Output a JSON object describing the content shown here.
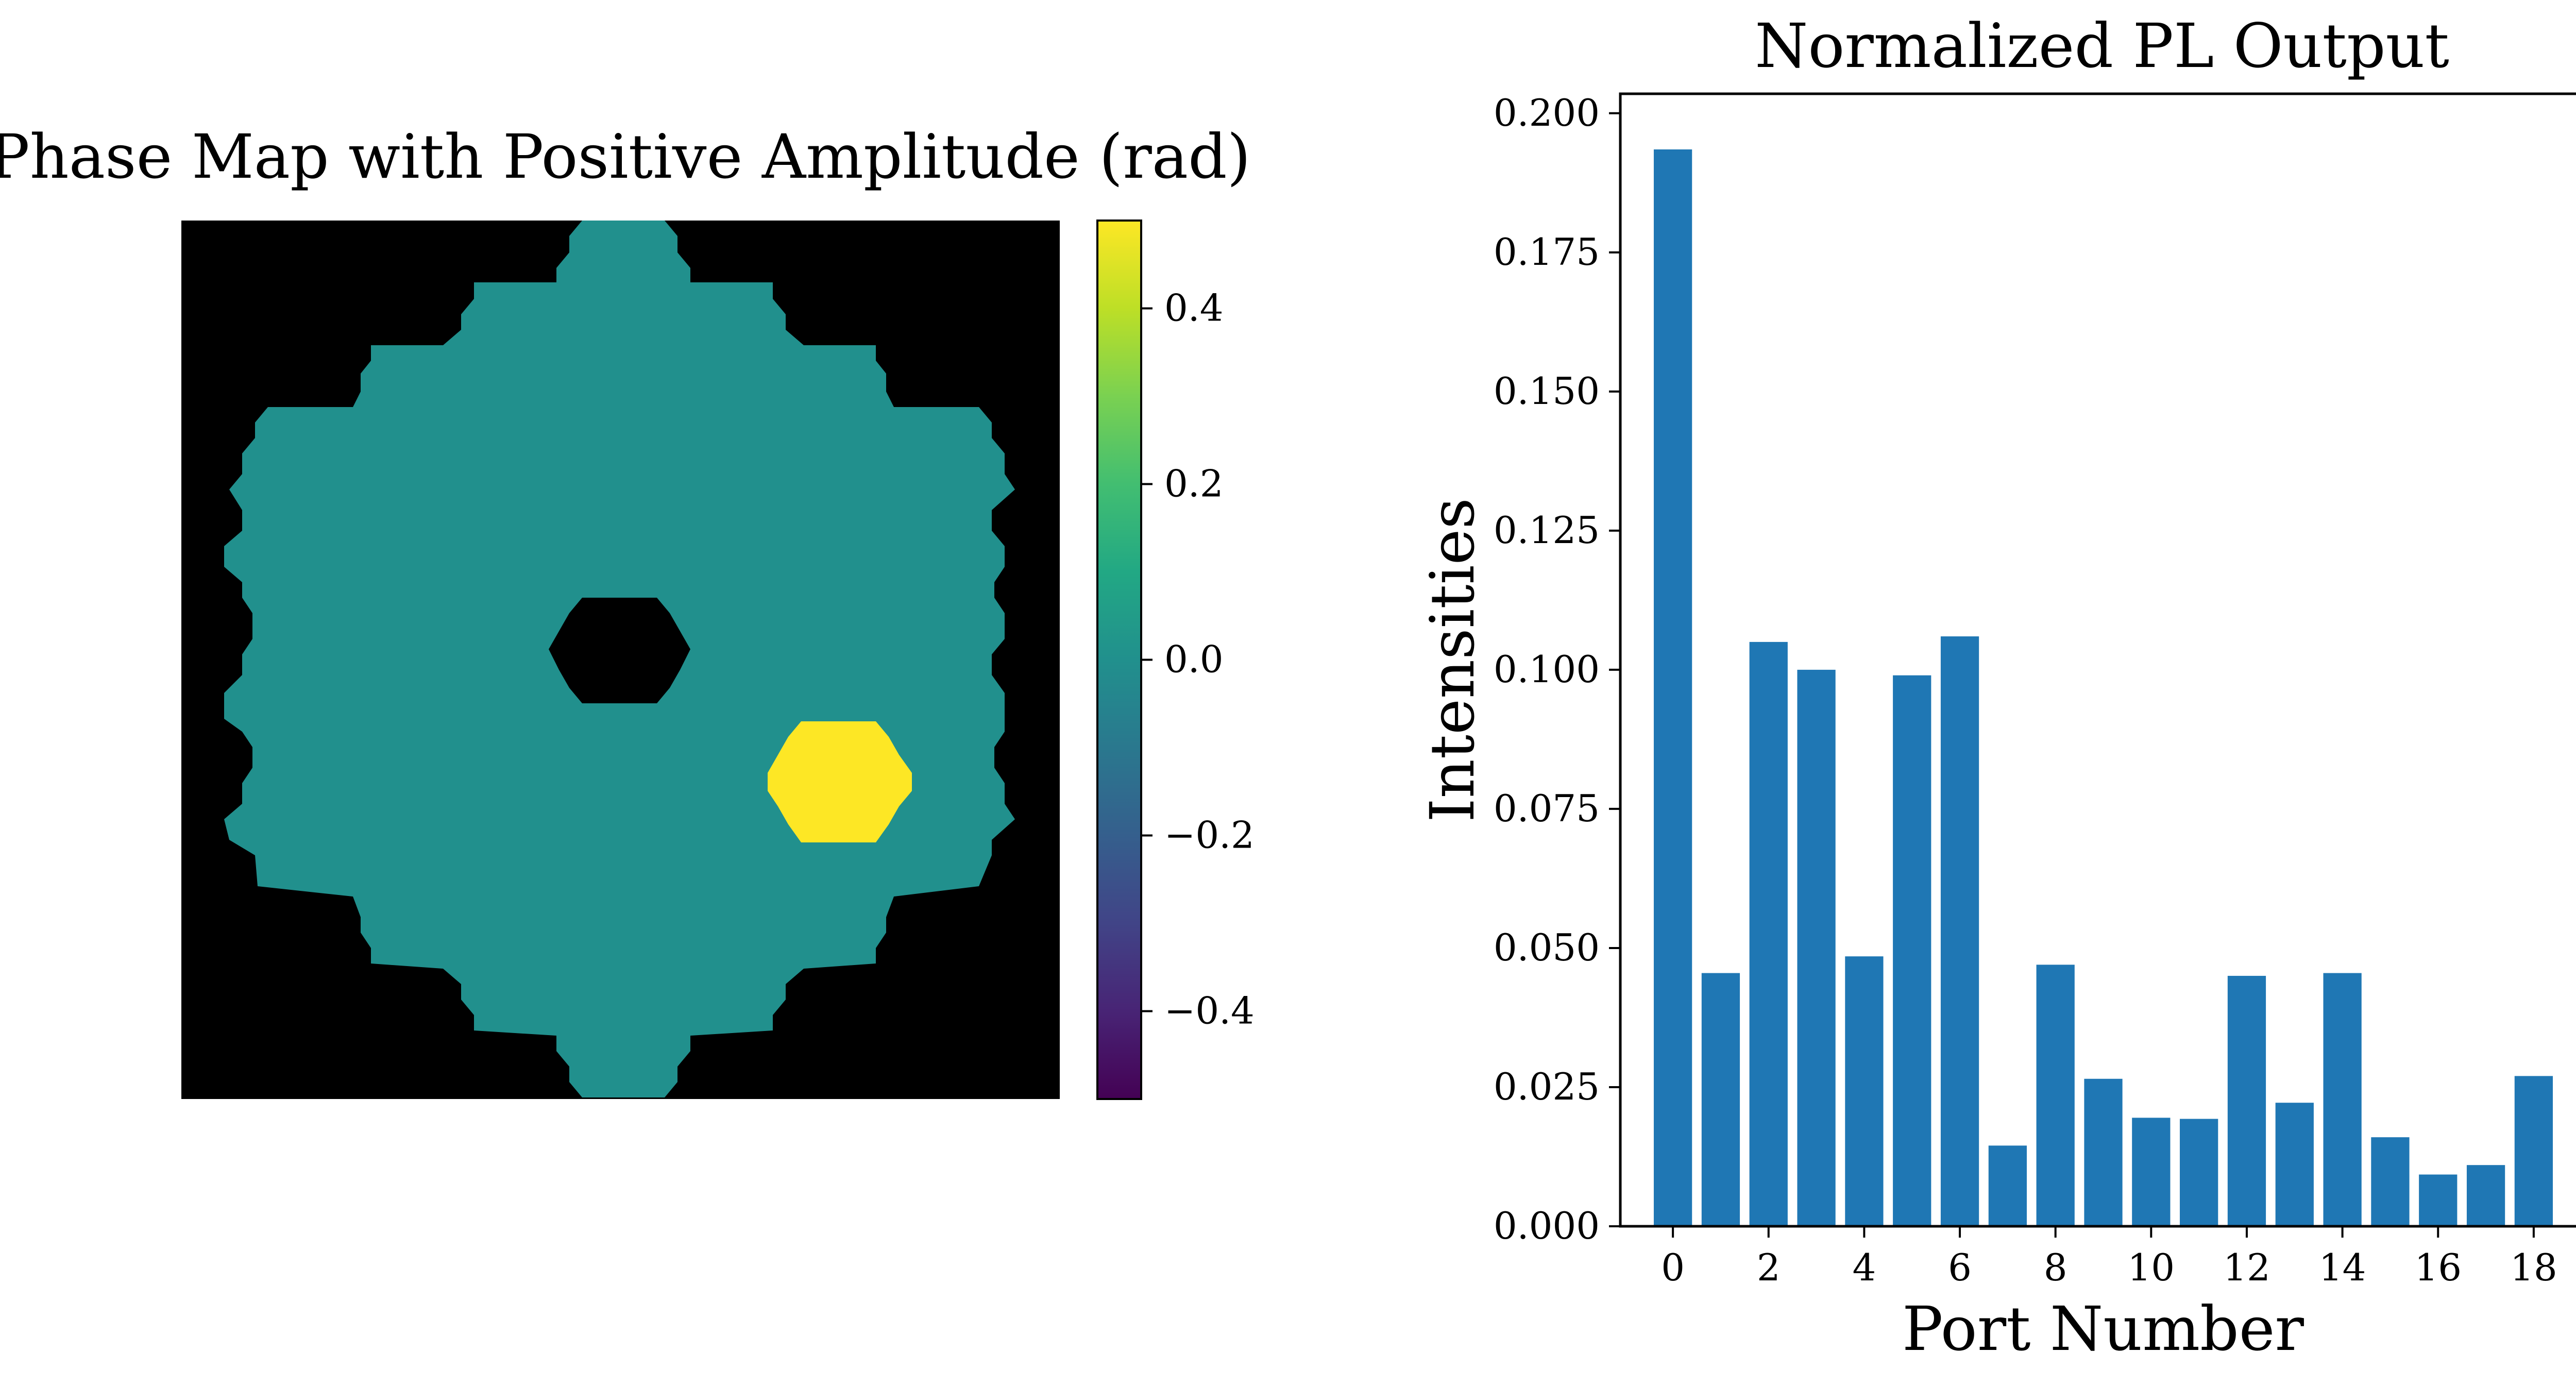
{
  "colors": {
    "background": "#ffffff",
    "mask": "#000000",
    "pupil": "#21908d",
    "segment": "#fde725",
    "bar": "#1f77b4",
    "axis": "#000000"
  },
  "chart_data": [
    {
      "type": "heatmap",
      "title": "Phase Map with Positive Amplitude (rad)",
      "description_values": {
        "pupil_phase": 0.0,
        "aberrated_segment_phase": 0.5,
        "outside_pupil": "masked"
      },
      "colorbar": {
        "colormap": "viridis",
        "range": [
          -0.5,
          0.5
        ],
        "ticks": [
          0.4,
          0.2,
          0.0,
          -0.2,
          -0.4
        ],
        "tick_labels": [
          "0.4",
          "0.2",
          "0.0",
          "−0.2",
          "−0.4"
        ]
      },
      "axes_visible": false
    },
    {
      "type": "bar",
      "title": "Normalized PL Output",
      "xlabel": "Port Number",
      "ylabel": "Intensities",
      "categories": [
        0,
        1,
        2,
        3,
        4,
        5,
        6,
        7,
        8,
        9,
        10,
        11,
        12,
        13,
        14,
        15,
        16,
        17,
        18
      ],
      "values": [
        0.1935,
        0.0455,
        0.105,
        0.1,
        0.0485,
        0.099,
        0.106,
        0.0145,
        0.047,
        0.0265,
        0.0195,
        0.0193,
        0.045,
        0.0222,
        0.0455,
        0.016,
        0.0093,
        0.011,
        0.027
      ],
      "ylim": [
        0,
        0.2035
      ],
      "xlim": [
        -1.1,
        19.1
      ],
      "xticks": [
        0,
        2,
        4,
        6,
        8,
        10,
        12,
        14,
        16,
        18
      ],
      "xtick_labels": [
        "0",
        "2",
        "4",
        "6",
        "8",
        "10",
        "12",
        "14",
        "16",
        "18"
      ],
      "yticks": [
        0.0,
        0.025,
        0.05,
        0.075,
        0.1,
        0.125,
        0.15,
        0.175,
        0.2
      ],
      "ytick_labels": [
        "0.000",
        "0.025",
        "0.050",
        "0.075",
        "0.100",
        "0.125",
        "0.150",
        "0.175",
        "0.200"
      ],
      "grid": false
    }
  ]
}
